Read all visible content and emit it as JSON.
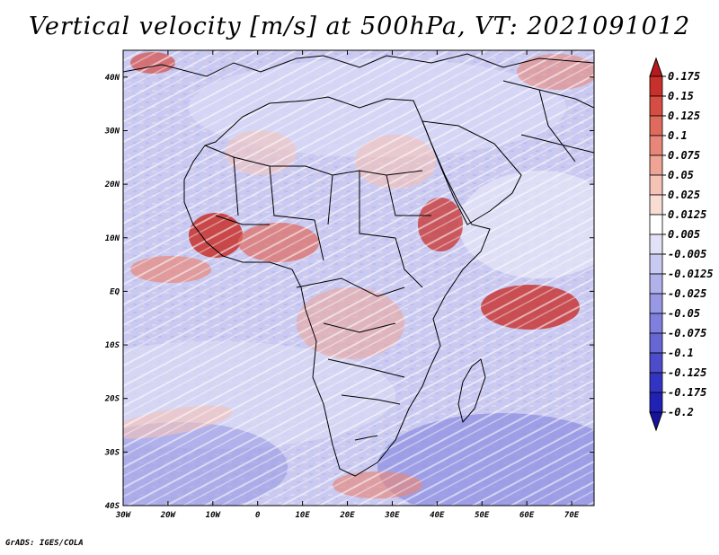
{
  "title": "Vertical velocity [m/s] at 500hPa, VT: 2021091012",
  "credit": "GrADS: IGES/COLA",
  "map": {
    "lon_range": [
      -30,
      75
    ],
    "lat_range": [
      -40,
      45
    ],
    "lon_labels": [
      "30W",
      "20W",
      "10W",
      "0",
      "10E",
      "20E",
      "30E",
      "40E",
      "50E",
      "60E",
      "70E"
    ],
    "lat_labels": [
      "40N",
      "30N",
      "20N",
      "10N",
      "EQ",
      "10S",
      "20S",
      "30S",
      "40S"
    ]
  },
  "colorbar": {
    "labels": [
      "0.175",
      "0.15",
      "0.125",
      "0.1",
      "0.075",
      "0.05",
      "0.025",
      "0.0125",
      "0.005",
      "-0.005",
      "-0.0125",
      "-0.025",
      "-0.05",
      "-0.075",
      "-0.1",
      "-0.125",
      "-0.175",
      "-0.2"
    ],
    "colors": [
      "#b8191d",
      "#c8302c",
      "#d64d44",
      "#e06a5e",
      "#e88779",
      "#efa496",
      "#f5c2b6",
      "#f9ddd4",
      "#ffffff",
      "#e2e2f7",
      "#c9c9f1",
      "#b1b1eb",
      "#9898e4",
      "#7f7fdd",
      "#6666d5",
      "#4d4dcc",
      "#3434c2",
      "#2121b5",
      "#1414a0"
    ]
  }
}
